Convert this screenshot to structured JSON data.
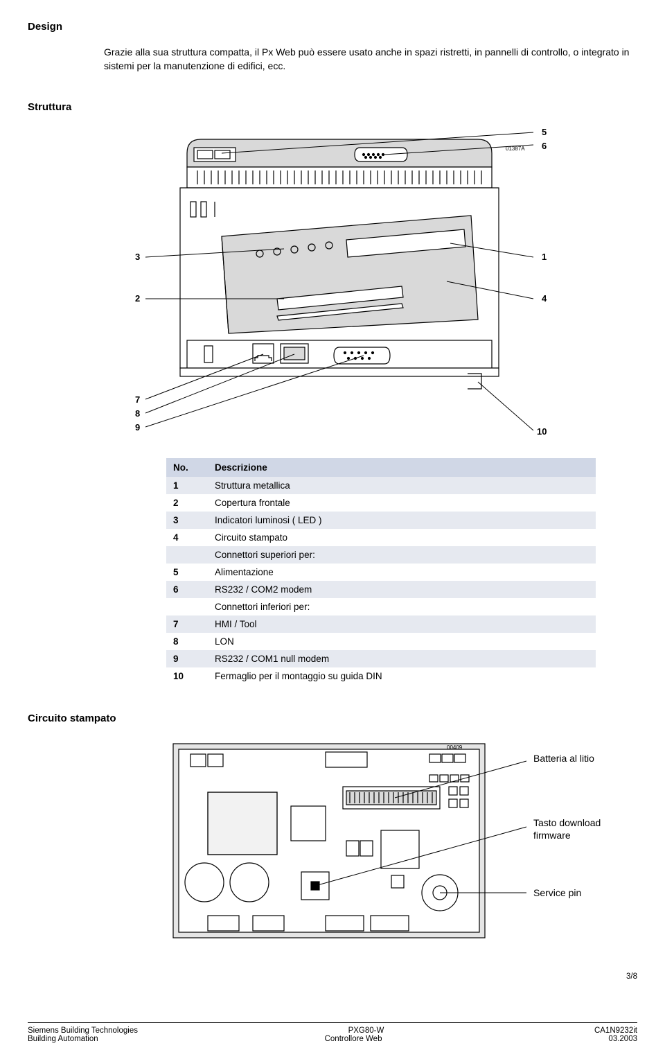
{
  "section_design": "Design",
  "intro": "Grazie alla sua struttura compatta, il Px Web può essere usato anche in spazi ristretti, in pannelli di controllo, o integrato in sistemi per la manutenzione di edifici, ecc.",
  "section_struttura": "Struttura",
  "diagram1": {
    "code_top": "01387A",
    "labels": {
      "n1": "1",
      "n2": "2",
      "n3": "3",
      "n4": "4",
      "n5": "5",
      "n6": "6",
      "n7": "7",
      "n8": "8",
      "n9": "9",
      "n10": "10"
    }
  },
  "table": {
    "head_no": "No.",
    "head_desc": "Descrizione",
    "rows": [
      {
        "no": "1",
        "desc": "Struttura metallica",
        "shaded": true
      },
      {
        "no": "2",
        "desc": "Copertura frontale",
        "shaded": false
      },
      {
        "no": "3",
        "desc": "Indicatori luminosi ( LED )",
        "shaded": true
      },
      {
        "no": "4",
        "desc": "Circuito stampato",
        "shaded": false
      },
      {
        "no": "",
        "desc": "Connettori superiori  per:",
        "shaded": true
      },
      {
        "no": "5",
        "desc": "Alimentazione",
        "shaded": false
      },
      {
        "no": "6",
        "desc": "RS232 / COM2 modem",
        "shaded": true
      },
      {
        "no": "",
        "desc": "Connettori inferiori per:",
        "shaded": false
      },
      {
        "no": "7",
        "desc": "HMI / Tool",
        "shaded": true
      },
      {
        "no": "8",
        "desc": "LON",
        "shaded": false
      },
      {
        "no": "9",
        "desc": "RS232 / COM1 null modem",
        "shaded": true
      },
      {
        "no": "10",
        "desc": "Fermaglio per il montaggio su guida DIN",
        "shaded": false
      }
    ]
  },
  "section_circuito": "Circuito stampato",
  "diagram2": {
    "code": "00409",
    "label_batteria": "Batteria al litio",
    "label_tasto": "Tasto download firmware",
    "label_service": "Service pin"
  },
  "footer": {
    "page": "3/8",
    "left1": "Siemens Building Technologies",
    "left2": "Building Automation",
    "mid1": "PXG80-W",
    "mid2": "Controllore Web",
    "right1": "CA1N9232it",
    "right2": "03.2003"
  },
  "colors": {
    "table_head_bg": "#d0d7e6",
    "table_row_shade": "#e6e9f0",
    "device_fill": "#d9d9d9",
    "pcb_fill": "#e5e5e5",
    "stroke": "#000000"
  }
}
